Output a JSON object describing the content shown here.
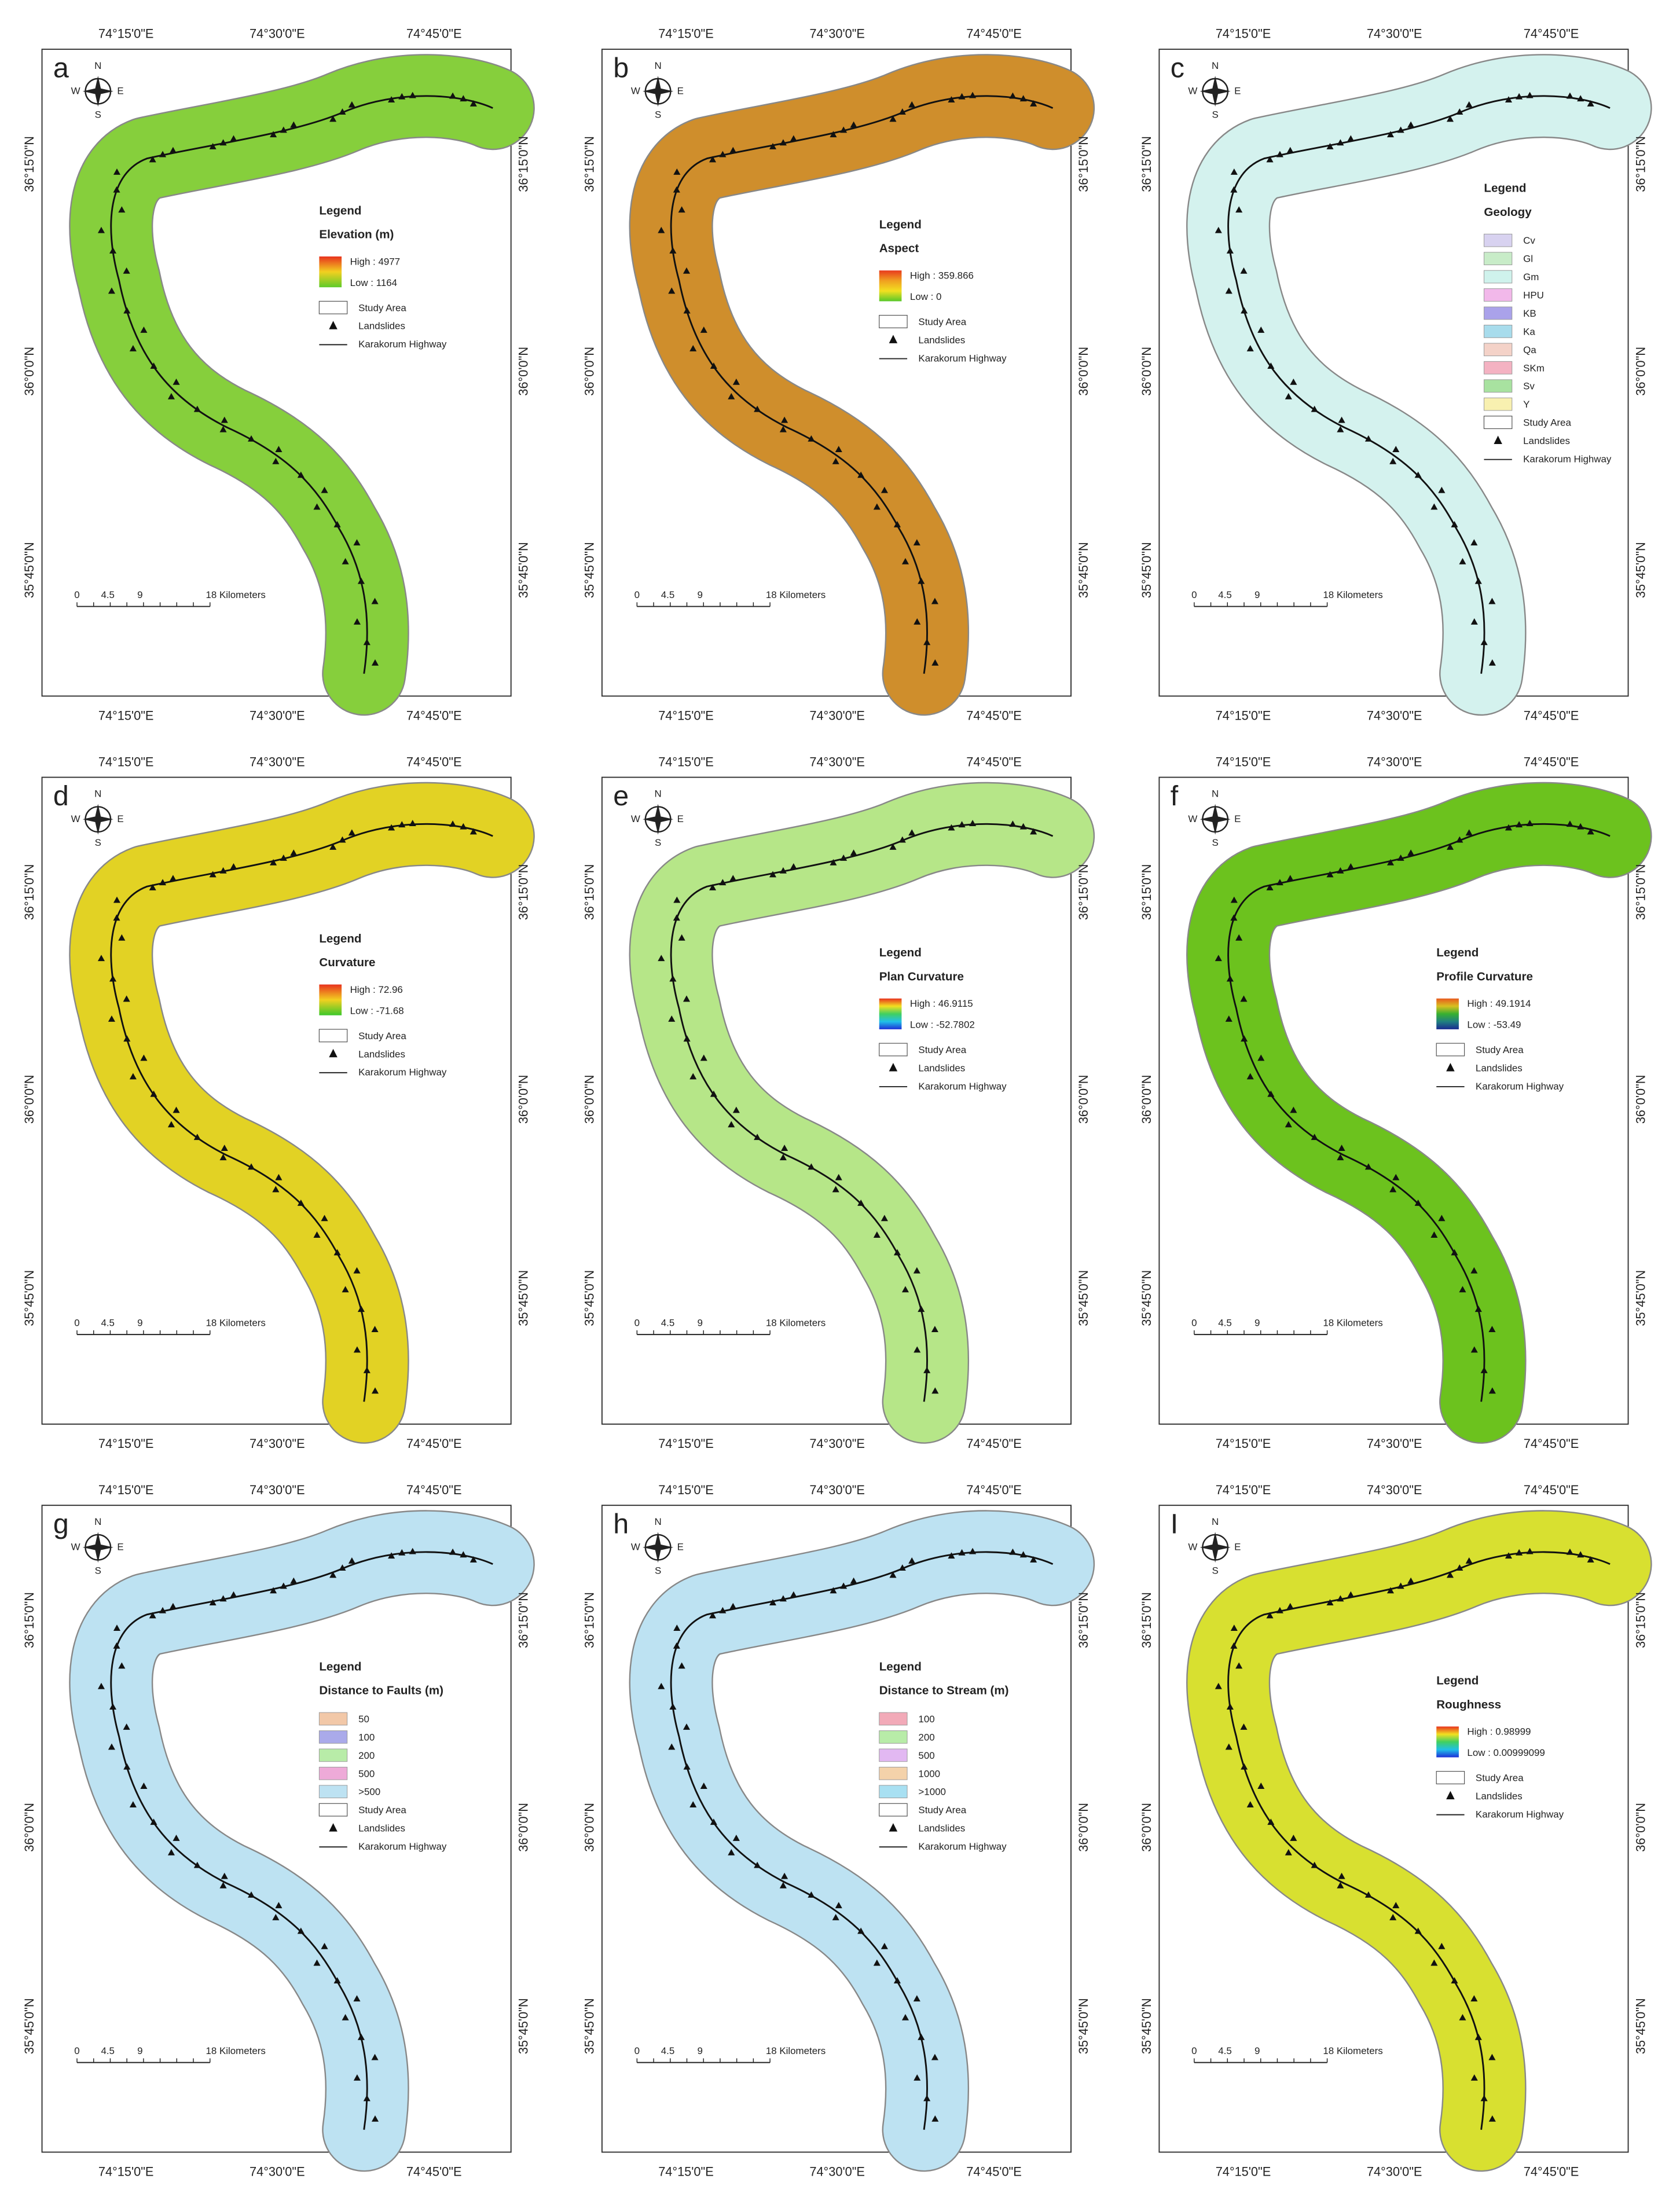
{
  "lon_labels": [
    "74°15'0\"E",
    "74°30'0\"E",
    "74°45'0\"E"
  ],
  "lat_labels": [
    "36°15'0\"N",
    "36°0'0\"N",
    "35°45'0\"N"
  ],
  "scale_labels": [
    "0",
    "4.5",
    "9",
    "18 Kilometers"
  ],
  "compass": [
    "N",
    "S",
    "E",
    "W"
  ],
  "legend_heading": "Legend",
  "base_legend": [
    "Study Area",
    "Landslides",
    "Karakorum Highway"
  ],
  "panels": [
    {
      "letter": "a",
      "title": "Elevation (m)",
      "map_color": "#86cf3c",
      "ramp": {
        "high": "High : 4977",
        "low": "Low : 1164",
        "colors": [
          "#e8321e",
          "#f2d020",
          "#5ecb2a"
        ]
      }
    },
    {
      "letter": "b",
      "title": "Aspect",
      "map_color": "#cf8e2c",
      "ramp": {
        "high": "High : 359.866",
        "low": "Low : 0",
        "colors": [
          "#e83a1e",
          "#f0a020",
          "#f2e020",
          "#58c82a"
        ]
      }
    },
    {
      "letter": "c",
      "title": "Geology",
      "map_color": "#d4f2ee",
      "classes": [
        {
          "label": "Cv",
          "color": "#d8d2f0"
        },
        {
          "label": "Gl",
          "color": "#c8ecc8"
        },
        {
          "label": "Gm",
          "color": "#cff2ec"
        },
        {
          "label": "HPU",
          "color": "#f2b8ea"
        },
        {
          "label": "KB",
          "color": "#aaa2ea"
        },
        {
          "label": "Ka",
          "color": "#a8dcec"
        },
        {
          "label": "Qa",
          "color": "#f4d2c8"
        },
        {
          "label": "SKm",
          "color": "#f4b2c2"
        },
        {
          "label": "Sv",
          "color": "#a8e2a0"
        },
        {
          "label": "Y",
          "color": "#f8f0b0"
        }
      ]
    },
    {
      "letter": "d",
      "title": "Curvature",
      "map_color": "#e2d224",
      "ramp": {
        "high": "High : 72.96",
        "low": "Low : -71.68",
        "colors": [
          "#e8321e",
          "#f2d020",
          "#3cc82a"
        ]
      }
    },
    {
      "letter": "e",
      "title": "Plan Curvature",
      "map_color": "#b6e688",
      "ramp": {
        "high": "High : 46.9115",
        "low": "Low : -52.7802",
        "colors": [
          "#e8321e",
          "#f2e020",
          "#40d060",
          "#20c0e8",
          "#1e30d8"
        ]
      }
    },
    {
      "letter": "f",
      "title": "Profile Curvature",
      "map_color": "#6cc21e",
      "ramp": {
        "high": "High : 49.1914",
        "low": "Low : -53.49",
        "colors": [
          "#e85a1e",
          "#d8c020",
          "#38b030",
          "#208080",
          "#1a2a90"
        ]
      }
    },
    {
      "letter": "g",
      "title": "Distance to Faults (m)",
      "map_color": "#bde2f2",
      "classes": [
        {
          "label": "50",
          "color": "#f2c8a8"
        },
        {
          "label": "100",
          "color": "#aaaaea"
        },
        {
          "label": "200",
          "color": "#b8eca8"
        },
        {
          "label": "500",
          "color": "#eeaad8"
        },
        {
          "label": ">500",
          "color": "#bde2f2"
        }
      ]
    },
    {
      "letter": "h",
      "title": "Distance to Stream (m)",
      "map_color": "#bde2f2",
      "classes": [
        {
          "label": "100",
          "color": "#f2aab8"
        },
        {
          "label": "200",
          "color": "#b8eca8"
        },
        {
          "label": "500",
          "color": "#e2b8f2"
        },
        {
          "label": "1000",
          "color": "#f4d2aa"
        },
        {
          "label": ">1000",
          "color": "#a8e0f2"
        }
      ]
    },
    {
      "letter": "I",
      "title": "Roughness",
      "map_color": "#d8e030",
      "ramp": {
        "high": "High : 0.98999",
        "low": "Low : 0.00999099",
        "colors": [
          "#e8321e",
          "#f2e020",
          "#40d060",
          "#20c0e8",
          "#1e30d8"
        ]
      }
    }
  ]
}
